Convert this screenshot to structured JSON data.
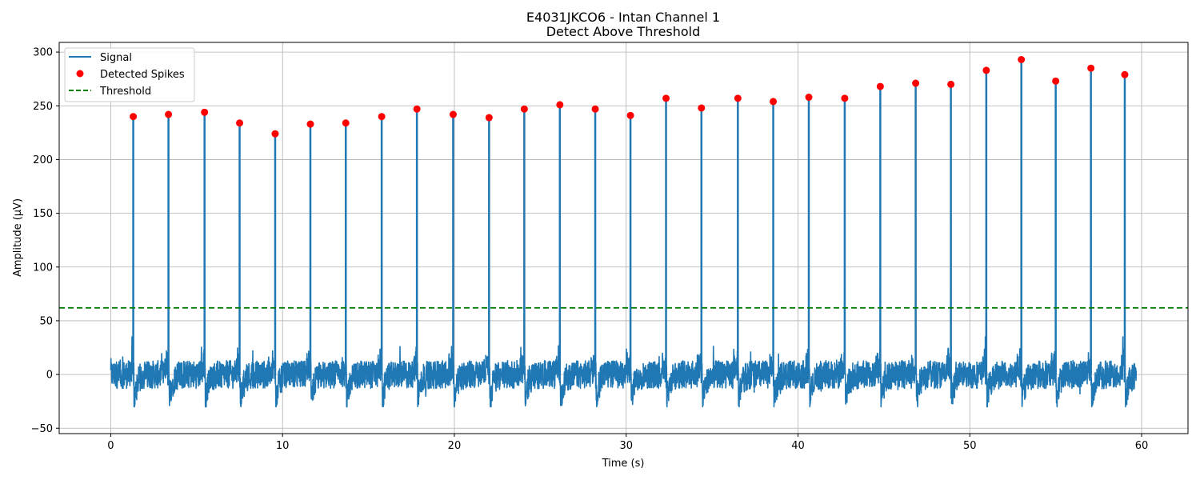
{
  "chart_data": {
    "type": "line",
    "title": "E4031JKCO6 - Intan Channel 1",
    "subtitle": "Detect Above Threshold",
    "xlabel": "Time (s)",
    "ylabel": "Amplitude (μV)",
    "xlim": [
      -3,
      62.7
    ],
    "ylim": [
      -55,
      309
    ],
    "x_ticks": [
      0,
      10,
      20,
      30,
      40,
      50,
      60
    ],
    "y_ticks": [
      -50,
      0,
      50,
      100,
      150,
      200,
      250,
      300
    ],
    "grid": true,
    "legend_placement": "top-left",
    "threshold": 62,
    "signal_duration": 59.7,
    "noise_range": [
      -30,
      35
    ],
    "series": [
      {
        "name": "Signal",
        "kind": "line",
        "color": "#1f77b4",
        "points": [
          [
            0,
            -5
          ],
          [
            0.6,
            10
          ],
          [
            1.2,
            -28
          ],
          [
            1.31,
            240
          ],
          [
            1.4,
            8
          ],
          [
            1.6,
            -30
          ],
          [
            2.4,
            12
          ],
          [
            3.2,
            -25
          ],
          [
            3.36,
            242
          ],
          [
            3.5,
            6
          ],
          [
            3.8,
            -30
          ],
          [
            4.8,
            10
          ],
          [
            5.46,
            244
          ],
          [
            5.6,
            -32
          ],
          [
            6.5,
            10
          ],
          [
            7.5,
            234
          ],
          [
            7.7,
            -35
          ],
          [
            8.6,
            8
          ],
          [
            9.57,
            224
          ],
          [
            9.8,
            -37
          ],
          [
            10.8,
            10
          ],
          [
            11.62,
            233
          ],
          [
            11.8,
            -33
          ],
          [
            12.7,
            10
          ],
          [
            13.68,
            234
          ],
          [
            13.9,
            -34
          ],
          [
            14.8,
            12
          ],
          [
            15.77,
            240
          ],
          [
            15.9,
            -32
          ],
          [
            16.8,
            12
          ],
          [
            17.82,
            247
          ],
          [
            18,
            -36
          ],
          [
            18.9,
            10
          ],
          [
            19.93,
            242
          ],
          [
            20.1,
            -34
          ],
          [
            21,
            12
          ],
          [
            22.02,
            239
          ],
          [
            22.2,
            -32
          ],
          [
            23.1,
            10
          ],
          [
            24.07,
            247
          ],
          [
            24.2,
            -34
          ],
          [
            25.2,
            12
          ],
          [
            26.14,
            251
          ],
          [
            26.3,
            -32
          ],
          [
            27.2,
            10
          ],
          [
            28.2,
            247
          ],
          [
            28.4,
            -30
          ],
          [
            29.3,
            10
          ],
          [
            30.25,
            241
          ],
          [
            30.5,
            -36
          ],
          [
            31.3,
            10
          ],
          [
            32.32,
            257
          ],
          [
            32.5,
            -32
          ],
          [
            33.4,
            12
          ],
          [
            34.38,
            248
          ],
          [
            34.6,
            -32
          ],
          [
            35.5,
            12
          ],
          [
            36.5,
            257
          ],
          [
            36.7,
            -35
          ],
          [
            37.6,
            12
          ],
          [
            38.56,
            254
          ],
          [
            38.8,
            -33
          ],
          [
            39.7,
            12
          ],
          [
            40.63,
            258
          ],
          [
            40.8,
            -34
          ],
          [
            41.7,
            12
          ],
          [
            42.72,
            257
          ],
          [
            42.9,
            -32
          ],
          [
            43.8,
            12
          ],
          [
            44.79,
            268
          ],
          [
            45,
            -32
          ],
          [
            45.9,
            12
          ],
          [
            46.85,
            271
          ],
          [
            47.1,
            -34
          ],
          [
            48,
            14
          ],
          [
            48.9,
            270
          ],
          [
            49.1,
            -30
          ],
          [
            50,
            12
          ],
          [
            50.96,
            283
          ],
          [
            51.2,
            -34
          ],
          [
            52.1,
            14
          ],
          [
            53.0,
            293
          ],
          [
            53.2,
            -34
          ],
          [
            54.1,
            12
          ],
          [
            55.0,
            273
          ],
          [
            55.2,
            -32
          ],
          [
            56.1,
            12
          ],
          [
            57.05,
            285
          ],
          [
            57.3,
            -36
          ],
          [
            58.1,
            12
          ],
          [
            59.02,
            279
          ],
          [
            59.2,
            -30
          ],
          [
            59.7,
            5
          ]
        ]
      },
      {
        "name": "Detected Spikes",
        "kind": "markers",
        "color": "#ff0000",
        "points": [
          [
            1.31,
            240
          ],
          [
            3.36,
            242
          ],
          [
            5.46,
            244
          ],
          [
            7.5,
            234
          ],
          [
            9.57,
            224
          ],
          [
            11.62,
            233
          ],
          [
            13.68,
            234
          ],
          [
            15.77,
            240
          ],
          [
            17.82,
            247
          ],
          [
            19.93,
            242
          ],
          [
            22.02,
            239
          ],
          [
            24.07,
            247
          ],
          [
            26.14,
            251
          ],
          [
            28.2,
            247
          ],
          [
            30.25,
            241
          ],
          [
            32.32,
            257
          ],
          [
            34.38,
            248
          ],
          [
            36.5,
            257
          ],
          [
            38.56,
            254
          ],
          [
            40.63,
            258
          ],
          [
            42.72,
            257
          ],
          [
            44.79,
            268
          ],
          [
            46.85,
            271
          ],
          [
            48.9,
            270
          ],
          [
            50.96,
            283
          ],
          [
            53.0,
            293
          ],
          [
            55.0,
            273
          ],
          [
            57.05,
            285
          ],
          [
            59.02,
            279
          ]
        ]
      },
      {
        "name": "Threshold",
        "kind": "dashed-line",
        "color": "#008000"
      }
    ]
  }
}
